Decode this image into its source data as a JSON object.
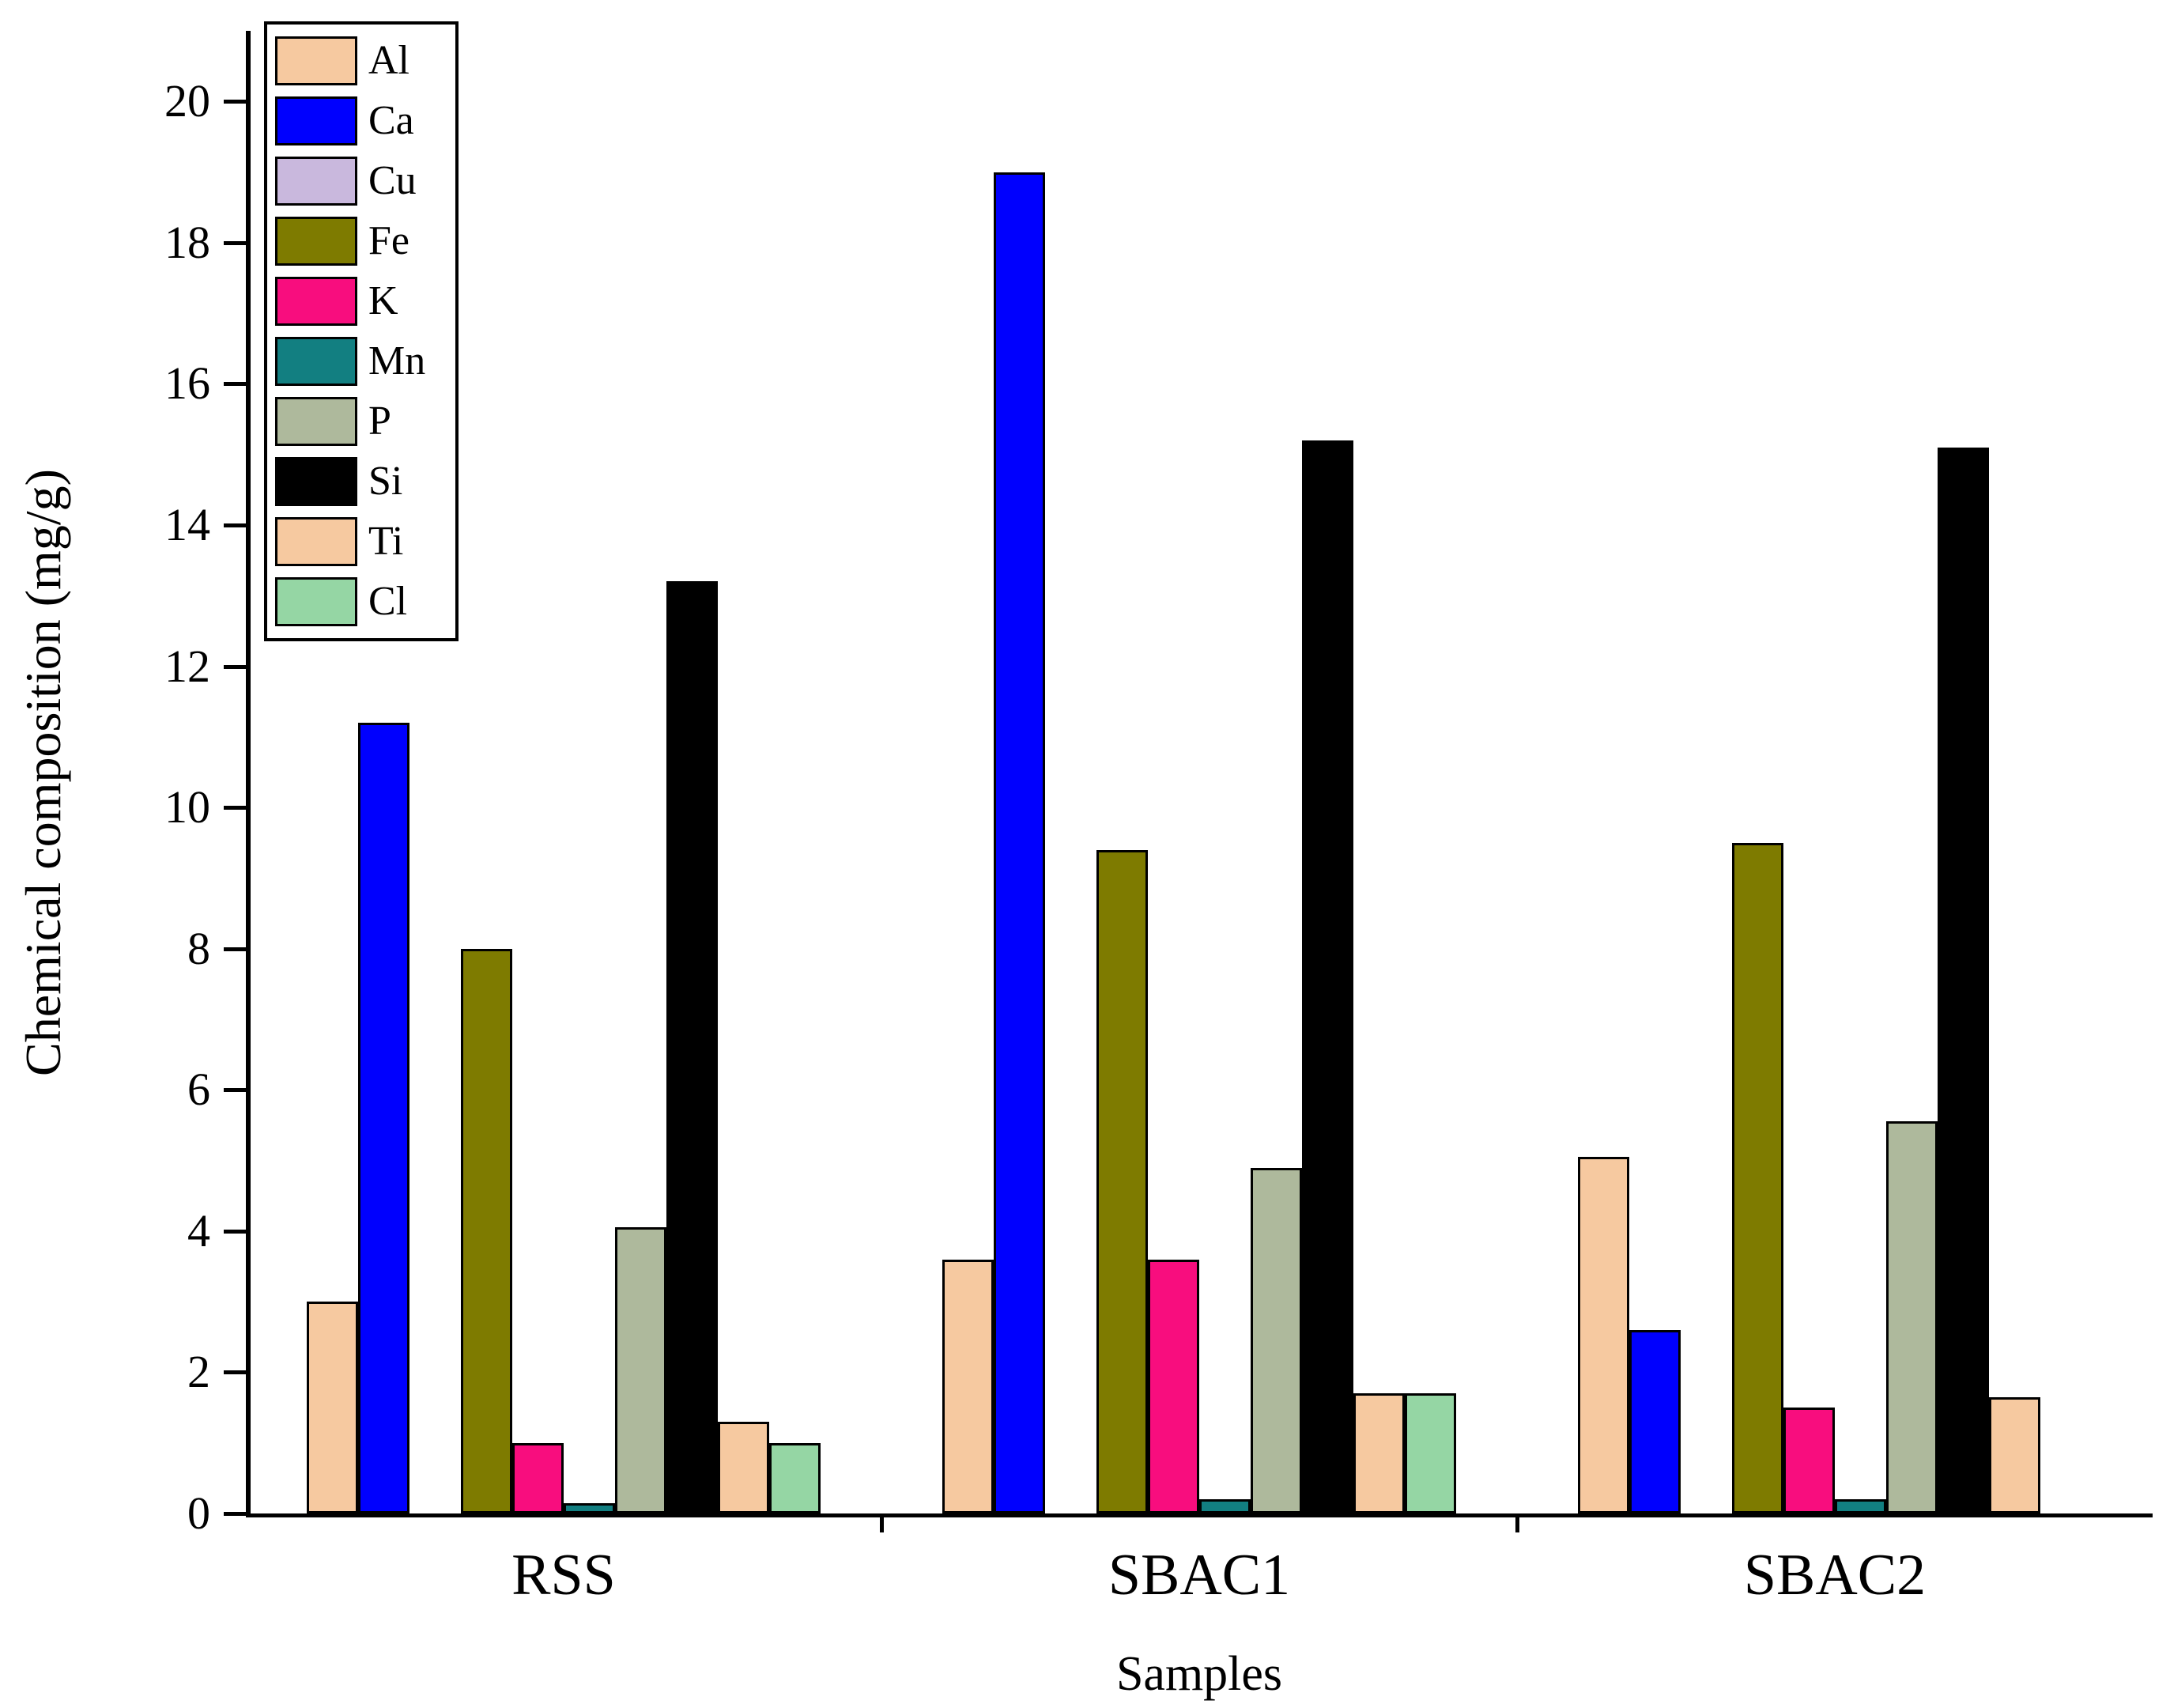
{
  "chart_data": {
    "type": "bar",
    "title": "",
    "xlabel": "Samples",
    "ylabel": "Chemical composition (mg/g)",
    "ylim": [
      0,
      21
    ],
    "yticks": [
      0,
      2,
      4,
      6,
      8,
      10,
      12,
      14,
      16,
      18,
      20
    ],
    "categories": [
      "RSS",
      "SBAC1",
      "SBAC2"
    ],
    "series": [
      {
        "name": "Al",
        "color": "#F6C9A0",
        "values": [
          3.0,
          3.6,
          5.05
        ]
      },
      {
        "name": "Ca",
        "color": "#0000FE",
        "values": [
          11.2,
          19.0,
          2.6
        ]
      },
      {
        "name": "Cu",
        "color": "#C9B8DD",
        "values": [
          0,
          0,
          0
        ]
      },
      {
        "name": "Fe",
        "color": "#7E7B00",
        "values": [
          8.0,
          9.4,
          9.5
        ]
      },
      {
        "name": "K",
        "color": "#F80D7E",
        "values": [
          1.0,
          3.6,
          1.5
        ]
      },
      {
        "name": "Mn",
        "color": "#127F81",
        "values": [
          0.15,
          0.2,
          0.2
        ]
      },
      {
        "name": "P",
        "color": "#AEB99C",
        "values": [
          4.05,
          4.9,
          5.55
        ]
      },
      {
        "name": "Si",
        "color": "#000000",
        "values": [
          13.2,
          15.2,
          15.1
        ]
      },
      {
        "name": "Ti",
        "color": "#F6C9A0",
        "values": [
          1.3,
          1.7,
          1.65
        ]
      },
      {
        "name": "Cl",
        "color": "#95D6A4",
        "values": [
          1.0,
          1.7,
          0
        ]
      }
    ],
    "legend_position": "top-left",
    "grid": false,
    "background": "#ffffff",
    "axis_color": "#000000"
  }
}
